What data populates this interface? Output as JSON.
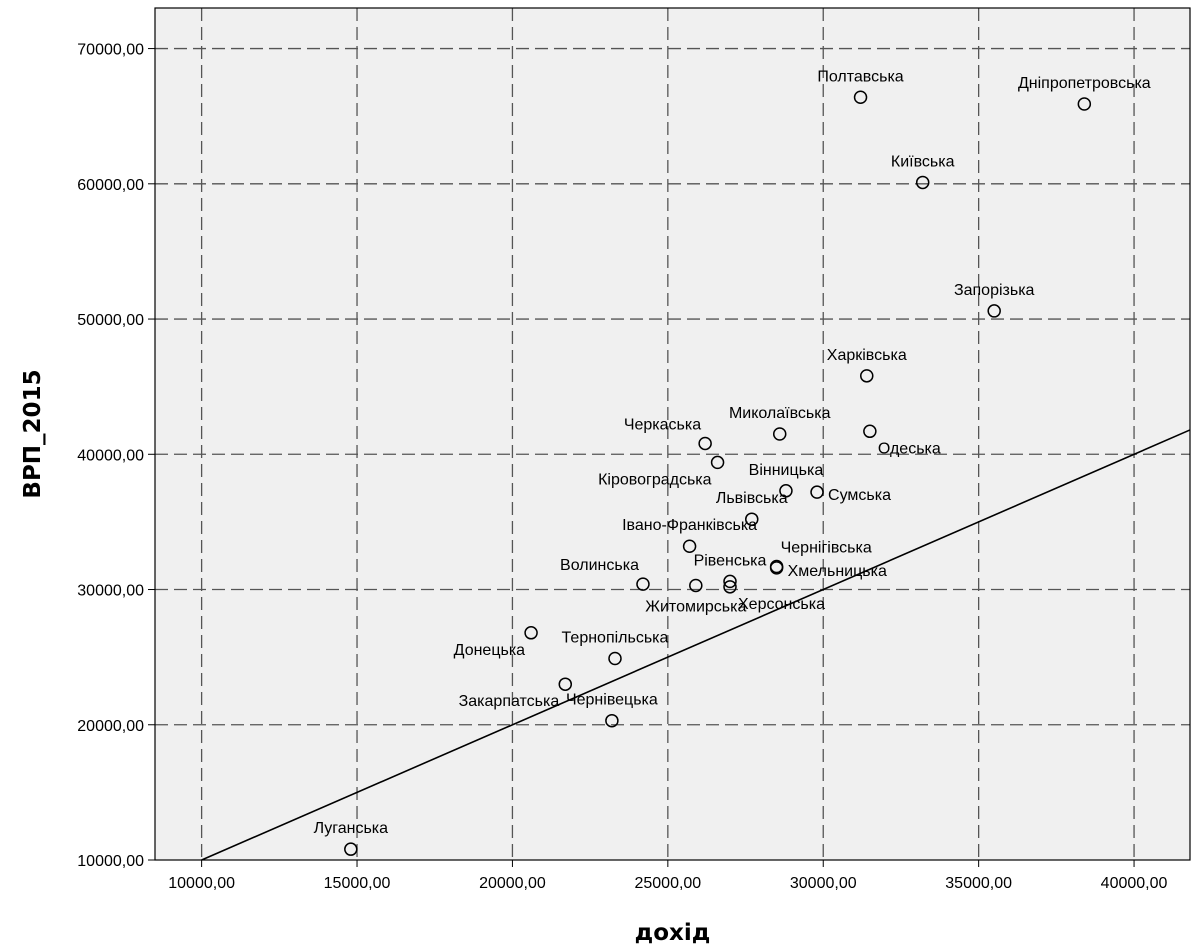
{
  "chart_data": {
    "type": "scatter",
    "xlabel": "дохід",
    "ylabel": "ВРП_2015",
    "xlim": [
      8500,
      41800
    ],
    "ylim": [
      10000,
      73000
    ],
    "x_ticks": [
      10000,
      15000,
      20000,
      25000,
      30000,
      35000,
      40000
    ],
    "y_ticks": [
      10000,
      20000,
      30000,
      40000,
      50000,
      60000,
      70000
    ],
    "x_tick_labels": [
      "10000,00",
      "15000,00",
      "20000,00",
      "25000,00",
      "30000,00",
      "35000,00",
      "40000,00"
    ],
    "y_tick_labels": [
      "10000,00",
      "20000,00",
      "30000,00",
      "40000,00",
      "50000,00",
      "60000,00",
      "70000,00"
    ],
    "grid": true,
    "background_color": "#f0f0f0",
    "points": [
      {
        "label": "Полтавська",
        "x": 31200,
        "y": 66400,
        "label_pos": "above"
      },
      {
        "label": "Дніпропетровська",
        "x": 38400,
        "y": 65900,
        "label_pos": "above"
      },
      {
        "label": "Київська",
        "x": 33200,
        "y": 60100,
        "label_pos": "above"
      },
      {
        "label": "Запорізька",
        "x": 35500,
        "y": 50600,
        "label_pos": "above"
      },
      {
        "label": "Харківська",
        "x": 31400,
        "y": 45800,
        "label_pos": "above"
      },
      {
        "label": "Миколаївська",
        "x": 28600,
        "y": 41500,
        "label_pos": "above"
      },
      {
        "label": "Одеська",
        "x": 31500,
        "y": 41700,
        "label_pos": "below-right"
      },
      {
        "label": "Черкаська",
        "x": 26200,
        "y": 40800,
        "label_pos": "above-left"
      },
      {
        "label": "Кіровоградська",
        "x": 26600,
        "y": 39400,
        "label_pos": "below-left"
      },
      {
        "label": "Вінницька",
        "x": 28800,
        "y": 37300,
        "label_pos": "above"
      },
      {
        "label": "Сумська",
        "x": 29800,
        "y": 37200,
        "label_pos": "right"
      },
      {
        "label": "Львівська",
        "x": 27700,
        "y": 35200,
        "label_pos": "above"
      },
      {
        "label": "Івано-Франківська",
        "x": 25700,
        "y": 33200,
        "label_pos": "above"
      },
      {
        "label": "Чернігівська",
        "x": 28500,
        "y": 31700,
        "label_pos": "above-right"
      },
      {
        "label": "Хмельницька",
        "x": 28500,
        "y": 31600,
        "label_pos": "right"
      },
      {
        "label": "Волинська",
        "x": 24200,
        "y": 30400,
        "label_pos": "above-left"
      },
      {
        "label": "Рівенська",
        "x": 27000,
        "y": 30600,
        "label_pos": "above"
      },
      {
        "label": "Житомирська",
        "x": 25900,
        "y": 30300,
        "label_pos": "below"
      },
      {
        "label": "Херсонська",
        "x": 27000,
        "y": 30200,
        "label_pos": "below-right"
      },
      {
        "label": "Донецька",
        "x": 20600,
        "y": 26800,
        "label_pos": "below-left"
      },
      {
        "label": "Тернопільська",
        "x": 23300,
        "y": 24900,
        "label_pos": "above"
      },
      {
        "label": "Закарпатська",
        "x": 21700,
        "y": 23000,
        "label_pos": "below-left"
      },
      {
        "label": "Чернівецька",
        "x": 23200,
        "y": 20300,
        "label_pos": "above"
      },
      {
        "label": "Луганська",
        "x": 14800,
        "y": 10800,
        "label_pos": "above"
      }
    ],
    "reference_line": {
      "x": [
        10000,
        41800
      ],
      "y": [
        10000,
        41800
      ]
    }
  }
}
